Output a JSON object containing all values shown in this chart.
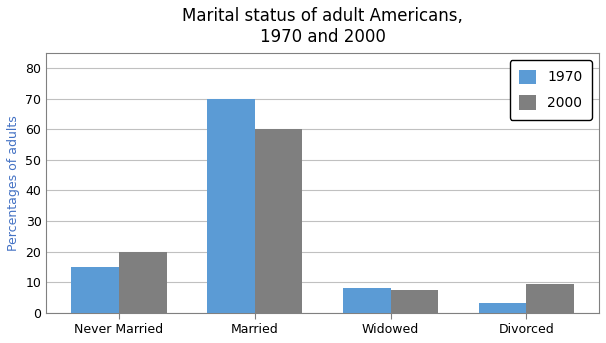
{
  "title": "Marital status of adult Americans,\n1970 and 2000",
  "categories": [
    "Never Married",
    "Married",
    "Widowed",
    "Divorced"
  ],
  "values_1970": [
    15,
    70,
    8,
    3
  ],
  "values_2000": [
    20,
    60,
    7.5,
    9.5
  ],
  "color_1970": "#5b9bd5",
  "color_2000": "#7f7f7f",
  "ylabel": "Percentages of adults",
  "ylabel_color": "#4472c4",
  "legend_labels": [
    "1970",
    "2000"
  ],
  "ylim": [
    0,
    85
  ],
  "yticks": [
    0,
    10,
    20,
    30,
    40,
    50,
    60,
    70,
    80
  ],
  "bar_width": 0.35,
  "title_fontsize": 12,
  "axis_fontsize": 9,
  "tick_fontsize": 9,
  "legend_fontsize": 10,
  "background_color": "#ffffff",
  "grid_color": "#c0c0c0",
  "spine_color": "#808080"
}
